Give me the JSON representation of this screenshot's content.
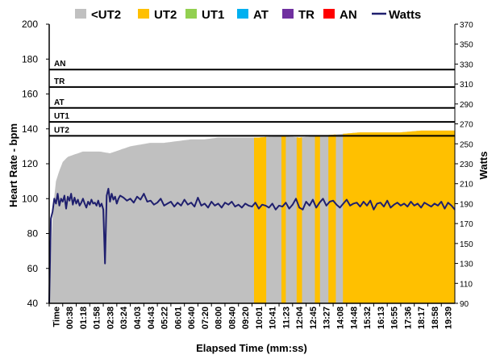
{
  "chart_data": {
    "type": "area",
    "title": "",
    "xlabel": "Elapsed Time (mm:ss)",
    "ylabel": "Heart Rate - bpm",
    "y2label": "Watts",
    "ylim": [
      40,
      200
    ],
    "y2lim": [
      90,
      370
    ],
    "yticks": [
      40,
      60,
      80,
      100,
      120,
      140,
      160,
      180,
      200
    ],
    "y2ticks": [
      90,
      110,
      130,
      150,
      170,
      190,
      210,
      230,
      250,
      270,
      290,
      310,
      330,
      350,
      370
    ],
    "x_tick_labels": [
      "Time",
      "00:38",
      "01:18",
      "01:58",
      "02:38",
      "03:24",
      "04:03",
      "04:43",
      "05:22",
      "06:01",
      "06:40",
      "07:20",
      "08:00",
      "08:40",
      "09:20",
      "10:01",
      "10:41",
      "11:23",
      "12:04",
      "12:45",
      "13:27",
      "14:08",
      "14:48",
      "15:32",
      "16:13",
      "16:55",
      "17:36",
      "18:17",
      "18:58",
      "19:39"
    ],
    "x_seconds_range": [
      0,
      1200
    ],
    "legend": {
      "placement": "top",
      "entries": [
        {
          "name": "<UT2",
          "color": "#c0c0c0",
          "kind": "box"
        },
        {
          "name": "UT2",
          "color": "#ffc000",
          "kind": "box"
        },
        {
          "name": "UT1",
          "color": "#92d050",
          "kind": "box"
        },
        {
          "name": "AT",
          "color": "#00b0f0",
          "kind": "box"
        },
        {
          "name": "TR",
          "color": "#7030a0",
          "kind": "box"
        },
        {
          "name": "AN",
          "color": "#ff0000",
          "kind": "box"
        },
        {
          "name": "Watts",
          "color": "#1f1f6e",
          "kind": "line"
        }
      ]
    },
    "zone_thresholds": [
      {
        "name": "UT2",
        "bpm": 136
      },
      {
        "name": "UT1",
        "bpm": 144
      },
      {
        "name": "AT",
        "bpm": 152
      },
      {
        "name": "TR",
        "bpm": 164
      },
      {
        "name": "AN",
        "bpm": 174
      }
    ],
    "heart_rate": {
      "x_seconds": [
        0,
        10,
        20,
        30,
        40,
        55,
        70,
        85,
        100,
        120,
        150,
        180,
        210,
        240,
        270,
        300,
        340,
        380,
        420,
        460,
        500,
        560,
        620,
        680,
        740,
        800,
        860,
        920,
        980,
        1040,
        1100,
        1150,
        1200
      ],
      "bpm": [
        40,
        92,
        110,
        116,
        121,
        124,
        125,
        126,
        127,
        127,
        127,
        126,
        128,
        130,
        131,
        132,
        132,
        133,
        134,
        134,
        135,
        135,
        135,
        136,
        135,
        136,
        137,
        138,
        138,
        138,
        139,
        139,
        139
      ]
    },
    "ut2_bands_seconds": [
      [
        606,
        642
      ],
      [
        687,
        700
      ],
      [
        732,
        748
      ],
      [
        786,
        801
      ],
      [
        826,
        848
      ],
      [
        869,
        1200
      ]
    ],
    "watts": {
      "x_seconds": [
        0,
        5,
        10,
        15,
        20,
        25,
        30,
        35,
        40,
        45,
        50,
        55,
        60,
        65,
        70,
        75,
        80,
        85,
        90,
        95,
        100,
        105,
        110,
        115,
        120,
        125,
        130,
        135,
        140,
        145,
        150,
        155,
        160,
        165,
        170,
        175,
        180,
        185,
        190,
        195,
        200,
        205,
        210,
        220,
        230,
        240,
        250,
        260,
        270,
        280,
        290,
        300,
        310,
        320,
        330,
        340,
        350,
        360,
        370,
        380,
        390,
        400,
        410,
        420,
        430,
        440,
        450,
        460,
        470,
        480,
        490,
        500,
        510,
        520,
        530,
        540,
        550,
        560,
        570,
        580,
        590,
        600,
        610,
        620,
        630,
        640,
        650,
        660,
        670,
        680,
        690,
        700,
        710,
        720,
        730,
        740,
        750,
        760,
        770,
        780,
        790,
        800,
        810,
        820,
        830,
        840,
        850,
        860,
        870,
        880,
        890,
        900,
        910,
        920,
        930,
        940,
        950,
        960,
        970,
        980,
        990,
        1000,
        1010,
        1020,
        1030,
        1040,
        1050,
        1060,
        1070,
        1080,
        1090,
        1100,
        1110,
        1120,
        1130,
        1140,
        1150,
        1160,
        1170,
        1180,
        1190,
        1200
      ],
      "values": [
        90,
        175,
        182,
        195,
        190,
        200,
        188,
        195,
        192,
        198,
        185,
        197,
        193,
        200,
        189,
        196,
        190,
        194,
        188,
        191,
        195,
        190,
        186,
        192,
        189,
        194,
        190,
        191,
        188,
        193,
        187,
        190,
        184,
        130,
        198,
        205,
        192,
        200,
        194,
        197,
        190,
        195,
        198,
        196,
        193,
        195,
        191,
        197,
        194,
        200,
        192,
        193,
        189,
        191,
        195,
        188,
        190,
        192,
        187,
        191,
        188,
        194,
        189,
        191,
        187,
        196,
        188,
        190,
        186,
        192,
        188,
        190,
        186,
        191,
        189,
        192,
        187,
        189,
        186,
        190,
        188,
        187,
        191,
        185,
        189,
        188,
        186,
        190,
        184,
        188,
        187,
        191,
        185,
        189,
        195,
        186,
        184,
        192,
        188,
        194,
        186,
        191,
        195,
        188,
        192,
        193,
        189,
        186,
        190,
        194,
        188,
        190,
        191,
        187,
        192,
        188,
        193,
        184,
        190,
        191,
        187,
        193,
        186,
        189,
        191,
        188,
        190,
        187,
        192,
        188,
        190,
        186,
        191,
        189,
        187,
        190,
        188,
        192,
        185,
        191,
        188,
        184
      ]
    }
  }
}
